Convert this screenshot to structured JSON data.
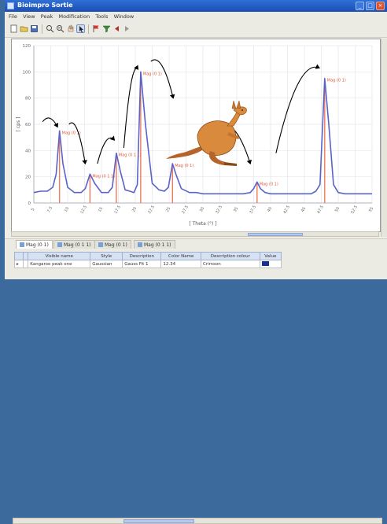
{
  "window": {
    "title": "Bioimpro Sortie",
    "controls": {
      "minimize": "_",
      "maximize": "□",
      "close": "×"
    }
  },
  "menu": {
    "items": [
      "File",
      "View",
      "Peak",
      "Modification",
      "Tools",
      "Window"
    ]
  },
  "toolbar": {
    "icons": [
      "new-icon",
      "open-icon",
      "save-icon",
      "zoom-in-icon",
      "zoom-out-icon",
      "hand-icon",
      "cursor-icon",
      "flag-icon",
      "filter-icon",
      "arrow-left-icon",
      "arrow-right-icon"
    ]
  },
  "chart_data": {
    "type": "line",
    "title": "",
    "xlabel": "[ Theta (°) ]",
    "ylabel": "[ cps ]",
    "xlim": [
      5,
      55
    ],
    "ylim": [
      0,
      120
    ],
    "y_ticks": [
      "0",
      "20",
      "40",
      "60",
      "80",
      "100",
      "120"
    ],
    "x_ticks": [
      "5",
      "7.5",
      "10",
      "12.5",
      "15",
      "17.5",
      "20",
      "22.5",
      "25",
      "27.5",
      "30",
      "32.5",
      "35",
      "37.5",
      "40",
      "42.5",
      "45",
      "47.5",
      "50",
      "52.5",
      "55"
    ],
    "grid": true,
    "colors": {
      "line": "#5b63c9",
      "peak": "#f07a5a",
      "label": "#e25b3a",
      "arrow": "#000000"
    },
    "series": [
      {
        "x": [
          5,
          6,
          7,
          7.8,
          8.3,
          8.8,
          9.3,
          10,
          11,
          12,
          12.6,
          13.3,
          14,
          15,
          16,
          16.6,
          17.2,
          17.8,
          18.5,
          19.2,
          19.8,
          20.3,
          20.8,
          21.5,
          22.5,
          23.5,
          24.3,
          24.9,
          25.5,
          26,
          26.8,
          28,
          29,
          30,
          31,
          32,
          33,
          34,
          35,
          36,
          37,
          37.5,
          38,
          38.5,
          39.2,
          40,
          41,
          42,
          43,
          44,
          45,
          46,
          46.7,
          47.3,
          48,
          48.6,
          49.3,
          50,
          51,
          52,
          53,
          54,
          55
        ],
        "values": [
          8,
          9,
          9,
          12,
          22,
          55,
          30,
          12,
          8,
          8,
          11,
          22,
          15,
          8,
          8,
          12,
          38,
          24,
          10,
          9,
          8,
          14,
          100,
          60,
          15,
          10,
          9,
          12,
          30,
          22,
          11,
          8,
          8,
          7,
          7,
          7,
          7,
          7,
          7,
          7,
          8,
          11,
          16,
          11,
          8,
          7,
          7,
          7,
          7,
          7,
          7,
          7,
          9,
          14,
          95,
          60,
          14,
          8,
          7,
          7,
          7,
          7,
          7
        ]
      }
    ],
    "peaks": [
      {
        "x": 8.8,
        "y": 55,
        "label": "Mag (0 1)"
      },
      {
        "x": 13.3,
        "y": 22,
        "label": "Mag (0 1 1)"
      },
      {
        "x": 17.2,
        "y": 38,
        "label": "Mag (0 1 1)"
      },
      {
        "x": 20.8,
        "y": 100,
        "label": "Mag (0 1)"
      },
      {
        "x": 25.5,
        "y": 30,
        "label": "Mag (0 1)"
      },
      {
        "x": 38,
        "y": 16,
        "label": "Mag (0 1)"
      },
      {
        "x": 48,
        "y": 95,
        "label": "Mag (0 1)"
      }
    ],
    "arrows": [
      {
        "from_x": 6.3,
        "from_y": 62,
        "to_x": 8.5,
        "to_y": 58
      },
      {
        "from_x": 10.2,
        "from_y": 60,
        "to_x": 12.6,
        "to_y": 30
      },
      {
        "from_x": 14.4,
        "from_y": 30,
        "to_x": 16.9,
        "to_y": 48
      },
      {
        "from_x": 18.3,
        "from_y": 42,
        "to_x": 20.4,
        "to_y": 102
      },
      {
        "from_x": 22.3,
        "from_y": 108,
        "to_x": 25.6,
        "to_y": 80
      },
      {
        "from_x": 32.6,
        "from_y": 58,
        "to_x": 37,
        "to_y": 30
      },
      {
        "from_x": 40.8,
        "from_y": 38,
        "to_x": 47.2,
        "to_y": 103
      }
    ]
  },
  "tabs": [
    {
      "label": "Mag (0 1)"
    },
    {
      "label": "Mag (0 1 1)"
    },
    {
      "label": "Mag (0 1)"
    },
    {
      "label": "Mag (0 1 1)"
    }
  ],
  "peak_table": {
    "headers": [
      "",
      "",
      "Visible name",
      "Style",
      "Description",
      "Color Name",
      "Description colour",
      "Value"
    ],
    "rows": [
      [
        "▸",
        "",
        "Kangaroo peak one",
        "Gaussian",
        "Gauss Fit 1",
        "12.34",
        "Crimson",
        ""
      ]
    ]
  }
}
